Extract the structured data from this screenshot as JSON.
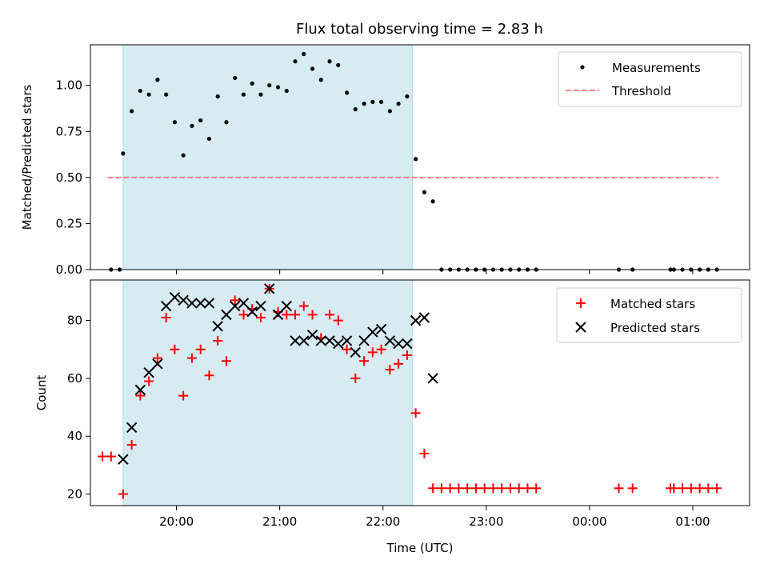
{
  "chart_data": [
    {
      "type": "scatter",
      "title": "Flux total observing time = 2.83 h",
      "xlabel": "",
      "ylabel": "Matched/Predicted stars",
      "xlim": [
        "19:10",
        "25:33"
      ],
      "ylim": [
        0,
        1.22
      ],
      "x_ticks": [
        "20:00",
        "21:00",
        "22:00",
        "23:00",
        "00:00",
        "01:00"
      ],
      "y_ticks": [
        "0.00",
        "0.25",
        "0.50",
        "0.75",
        "1.00"
      ],
      "y_tick_values": [
        0,
        0.25,
        0.5,
        0.75,
        1.0
      ],
      "shaded_interval": [
        "19:29",
        "22:17"
      ],
      "shade_color": "#add8e6",
      "legend_position": "upper right",
      "legend": [
        "Measurements",
        "Threshold"
      ],
      "series": [
        {
          "name": "Measurements",
          "marker": "dot",
          "color": "#000000",
          "x": [
            "19:22",
            "19:27",
            "19:29",
            "19:34",
            "19:39",
            "19:44",
            "19:49",
            "19:54",
            "19:59",
            "20:04",
            "20:09",
            "20:14",
            "20:19",
            "20:24",
            "20:29",
            "20:34",
            "20:39",
            "20:44",
            "20:49",
            "20:54",
            "20:59",
            "21:04",
            "21:09",
            "21:14",
            "21:19",
            "21:24",
            "21:29",
            "21:34",
            "21:39",
            "21:44",
            "21:49",
            "21:54",
            "21:59",
            "22:04",
            "22:09",
            "22:14",
            "22:19",
            "22:24",
            "22:29",
            "22:34",
            "22:39",
            "22:44",
            "22:49",
            "22:54",
            "22:59",
            "23:04",
            "23:09",
            "23:14",
            "23:19",
            "23:24",
            "23:29",
            "24:17",
            "24:25",
            "24:47",
            "24:49",
            "24:54",
            "24:59",
            "25:04",
            "25:09",
            "25:14"
          ],
          "y": [
            0,
            0,
            0.63,
            0.86,
            0.97,
            0.95,
            1.03,
            0.95,
            0.8,
            0.62,
            0.78,
            0.81,
            0.71,
            0.94,
            0.8,
            1.04,
            0.95,
            1.01,
            0.95,
            1.0,
            0.99,
            0.97,
            1.13,
            1.17,
            1.09,
            1.03,
            1.13,
            1.11,
            0.96,
            0.87,
            0.9,
            0.91,
            0.91,
            0.86,
            0.9,
            0.94,
            0.6,
            0.42,
            0.37,
            0,
            0,
            0,
            0,
            0,
            0,
            0,
            0,
            0,
            0,
            0,
            0,
            0,
            0,
            0,
            0,
            0,
            0,
            0,
            0,
            0
          ]
        },
        {
          "name": "Threshold",
          "style": "dashed",
          "color": "#ff8080",
          "x": [
            "19:20",
            "25:15"
          ],
          "y": [
            0.5,
            0.5
          ]
        }
      ]
    },
    {
      "type": "scatter",
      "title": "",
      "xlabel": "Time (UTC)",
      "ylabel": "Count",
      "xlim": [
        "19:10",
        "25:33"
      ],
      "ylim": [
        16,
        94
      ],
      "x_ticks": [
        "20:00",
        "21:00",
        "22:00",
        "23:00",
        "00:00",
        "01:00"
      ],
      "y_ticks": [
        "20",
        "40",
        "60",
        "80"
      ],
      "y_tick_values": [
        20,
        40,
        60,
        80
      ],
      "shaded_interval": [
        "19:29",
        "22:17"
      ],
      "shade_color": "#add8e6",
      "legend_position": "upper right",
      "legend": [
        "Matched stars",
        "Predicted stars"
      ],
      "series": [
        {
          "name": "Matched stars",
          "marker": "plus",
          "color": "#ff0000",
          "x": [
            "19:17",
            "19:22",
            "19:29",
            "19:34",
            "19:39",
            "19:44",
            "19:49",
            "19:54",
            "19:59",
            "20:04",
            "20:09",
            "20:14",
            "20:19",
            "20:24",
            "20:29",
            "20:34",
            "20:39",
            "20:44",
            "20:49",
            "20:54",
            "20:59",
            "21:04",
            "21:09",
            "21:14",
            "21:19",
            "21:24",
            "21:29",
            "21:34",
            "21:39",
            "21:44",
            "21:49",
            "21:54",
            "21:59",
            "22:04",
            "22:09",
            "22:14",
            "22:19",
            "22:24",
            "22:29",
            "22:34",
            "22:39",
            "22:44",
            "22:49",
            "22:54",
            "22:59",
            "23:04",
            "23:09",
            "23:14",
            "23:19",
            "23:24",
            "23:29",
            "24:17",
            "24:25",
            "24:47",
            "24:49",
            "24:54",
            "24:59",
            "25:04",
            "25:09",
            "25:14"
          ],
          "y": [
            33,
            33,
            20,
            37,
            54,
            59,
            67,
            81,
            70,
            54,
            67,
            70,
            61,
            73,
            66,
            87,
            82,
            84,
            81,
            91,
            83,
            82,
            82,
            85,
            82,
            74,
            82,
            80,
            70,
            60,
            66,
            69,
            70,
            63,
            65,
            68,
            48,
            34,
            22,
            22,
            22,
            22,
            22,
            22,
            22,
            22,
            22,
            22,
            22,
            22,
            22,
            22,
            22,
            22,
            22,
            22,
            22,
            22,
            22,
            22
          ]
        },
        {
          "name": "Predicted stars",
          "marker": "x",
          "color": "#000000",
          "x": [
            "19:29",
            "19:34",
            "19:39",
            "19:44",
            "19:49",
            "19:54",
            "19:59",
            "20:04",
            "20:09",
            "20:14",
            "20:19",
            "20:24",
            "20:29",
            "20:34",
            "20:39",
            "20:44",
            "20:49",
            "20:54",
            "20:59",
            "21:04",
            "21:09",
            "21:14",
            "21:19",
            "21:24",
            "21:29",
            "21:34",
            "21:39",
            "21:44",
            "21:49",
            "21:54",
            "21:59",
            "22:04",
            "22:09",
            "22:14",
            "22:19",
            "22:24",
            "22:29"
          ],
          "y": [
            32,
            43,
            56,
            62,
            65,
            85,
            88,
            87,
            86,
            86,
            86,
            78,
            82,
            85,
            86,
            83,
            85,
            91,
            82,
            85,
            73,
            73,
            75,
            73,
            73,
            72,
            73,
            69,
            73,
            76,
            77,
            73,
            72,
            72,
            80,
            81,
            60
          ]
        }
      ]
    }
  ]
}
